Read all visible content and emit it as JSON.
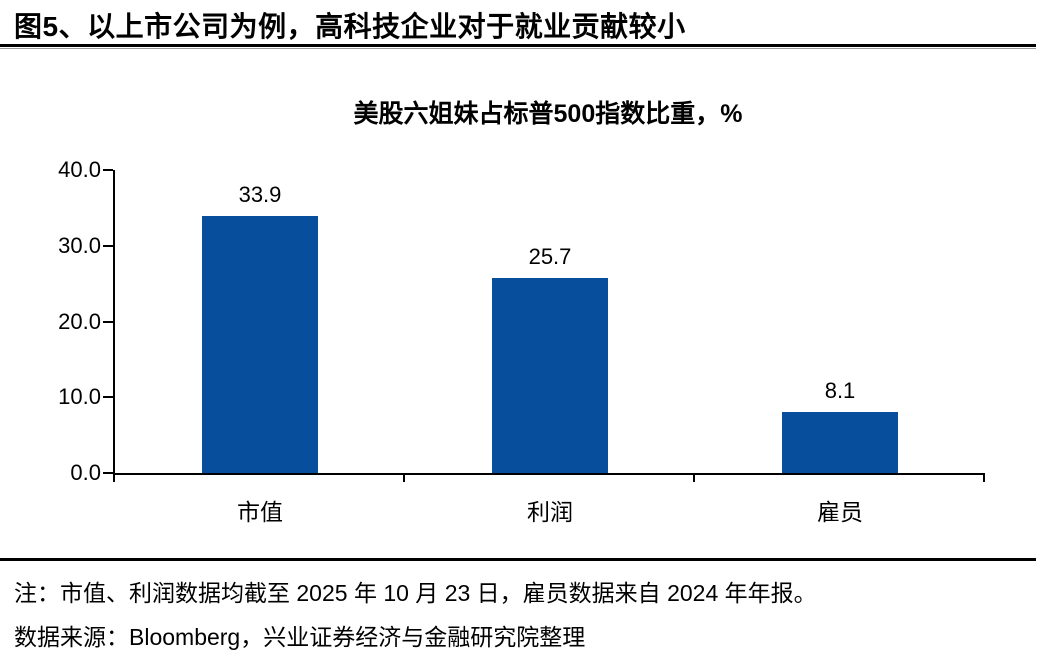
{
  "header": {
    "title": "图5、以上市公司为例，高科技企业对于就业贡献较小"
  },
  "chart_data": {
    "type": "bar",
    "title": "美股六姐妹占标普500指数比重，%",
    "categories": [
      "市值",
      "利润",
      "雇员"
    ],
    "values": [
      33.9,
      25.7,
      8.1
    ],
    "data_labels": [
      "33.9",
      "25.7",
      "8.1"
    ],
    "xlabel": "",
    "ylabel": "",
    "ylim": [
      0,
      40
    ],
    "yticks": [
      0,
      10,
      20,
      30,
      40
    ],
    "ytick_labels": [
      "0.0",
      "10.0",
      "20.0",
      "30.0",
      "40.0"
    ],
    "bar_color": "#074F9C",
    "axis_color": "#000000",
    "grid": false,
    "legend": "none"
  },
  "footer": {
    "note": "注：市值、利润数据均截至 2025 年 10 月 23 日，雇员数据来自 2024 年年报。",
    "source": "数据来源：Bloomberg，兴业证券经济与金融研究院整理"
  }
}
